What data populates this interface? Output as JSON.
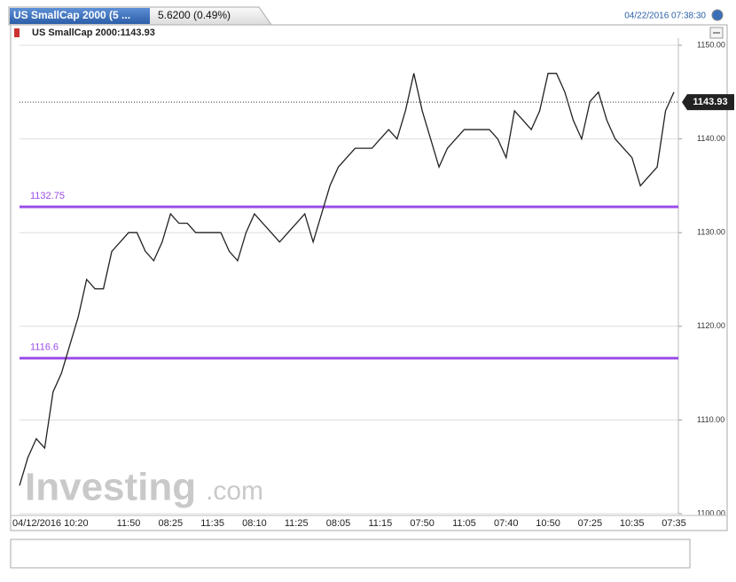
{
  "header": {
    "tab_title": "US SmallCap 2000 (5 ...",
    "change": "5.6200 (0.49%)",
    "timestamp": "04/22/2016 07:38:30",
    "legend": "US SmallCap 2000:1143.93",
    "watermark_brand": "Investing",
    "watermark_suffix": ".com"
  },
  "chart_data": {
    "type": "line",
    "categories": [
      null,
      null,
      null,
      null,
      null,
      null,
      null,
      null,
      "04/12/2016 10:20",
      null,
      null,
      null,
      null,
      "11:50",
      null,
      null,
      null,
      null,
      "08:25",
      null,
      null,
      null,
      null,
      "11:35",
      null,
      null,
      null,
      null,
      "08:10",
      null,
      null,
      null,
      null,
      "11:25",
      null,
      null,
      null,
      null,
      "08:05",
      null,
      null,
      null,
      null,
      "11:15",
      null,
      null,
      null,
      null,
      "07:50",
      null,
      null,
      null,
      null,
      "11:05",
      null,
      null,
      null,
      null,
      "07:40",
      null,
      null,
      null,
      null,
      "10:50",
      null,
      null,
      null,
      null,
      "07:25",
      null,
      null,
      null,
      null,
      "10:35",
      null,
      null,
      null,
      null,
      "07:35"
    ],
    "series": [
      {
        "name": "US SmallCap 2000",
        "color": "#222222",
        "values": [
          1103,
          1106,
          1108,
          1107,
          1113,
          1115,
          1118,
          1121,
          1125,
          1124,
          1124,
          1128,
          1129,
          1130,
          1130,
          1128,
          1127,
          1129,
          1132,
          1131,
          1131,
          1130,
          1130,
          1130,
          1130,
          1128,
          1127,
          1130,
          1132,
          1131,
          1130,
          1129,
          1130,
          1131,
          1132,
          1129,
          1132,
          1135,
          1137,
          1138,
          1139,
          1139,
          1139,
          1140,
          1141,
          1140,
          1143,
          1147,
          1143,
          1140,
          1137,
          1139,
          1140,
          1141,
          1141,
          1141,
          1141,
          1140,
          1138,
          1143,
          1142,
          1141,
          1143,
          1147,
          1147,
          1145,
          1142,
          1140,
          1144,
          1145,
          1142,
          1140,
          1139,
          1138,
          1135,
          1136,
          1137,
          1143,
          1145
        ]
      }
    ],
    "last_price": 1143.93,
    "levels": [
      {
        "value": 1132.75,
        "label": "1132.75",
        "color": "#9b4dea"
      },
      {
        "value": 1116.6,
        "label": "1116.6",
        "color": "#9b4dea"
      }
    ],
    "ylim": [
      1100,
      1150
    ],
    "yticks": [
      {
        "value": 1100,
        "label": "1100.00"
      },
      {
        "value": 1110,
        "label": "1110.00"
      },
      {
        "value": 1120,
        "label": "1120.00"
      },
      {
        "value": 1130,
        "label": "1130.00"
      },
      {
        "value": 1140,
        "label": "1140.00"
      },
      {
        "value": 1150,
        "label": "1150.00"
      }
    ],
    "grid": true,
    "navigator_color": "#4a7bd0"
  }
}
